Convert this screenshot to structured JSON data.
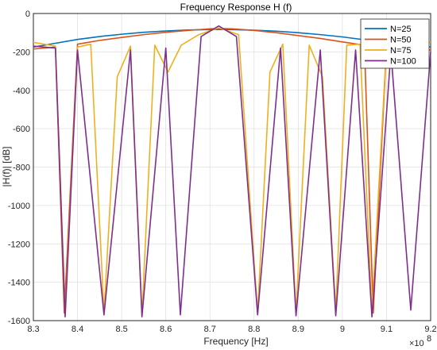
{
  "chart_data": {
    "type": "line",
    "title": "Frequency Response H (f)",
    "xlabel": "Frequency [Hz]",
    "ylabel": "|H(f)| [dB]",
    "x_exponent_label": "×10",
    "x_exponent_power": "8",
    "xlim": [
      8.3,
      9.2
    ],
    "ylim": [
      -1600,
      0
    ],
    "x_ticks": [
      "8.3",
      "8.4",
      "8.5",
      "8.6",
      "8.7",
      "8.8",
      "8.9",
      "9",
      "9.1",
      "9.2"
    ],
    "y_ticks": [
      "0",
      "-200",
      "-400",
      "-600",
      "-800",
      "-1000",
      "-1200",
      "-1400",
      "-1600"
    ],
    "grid": true,
    "legend_position": "top-right",
    "series": [
      {
        "name": "N=25",
        "color": "#0072BD",
        "x": [
          8.3,
          8.35,
          8.4,
          8.45,
          8.5,
          8.55,
          8.6,
          8.65,
          8.7,
          8.72,
          8.75,
          8.8,
          8.85,
          8.9,
          8.95,
          9.0,
          9.05,
          9.1,
          9.15,
          9.2
        ],
        "y": [
          -175,
          -155,
          -135,
          -120,
          -108,
          -98,
          -91,
          -86,
          -84,
          -83,
          -84,
          -87,
          -92,
          -100,
          -110,
          -122,
          -137,
          -152,
          -168,
          -175
        ],
        "nulls": []
      },
      {
        "name": "N=50",
        "color": "#D95319",
        "x": [
          8.3,
          8.35,
          8.37,
          8.4,
          8.45,
          8.5,
          8.55,
          8.6,
          8.65,
          8.7,
          8.72,
          8.75,
          8.8,
          8.85,
          8.9,
          8.95,
          9.0,
          9.05,
          9.07,
          9.1,
          9.15,
          9.2
        ],
        "y": [
          -185,
          -175,
          -1560,
          -160,
          -140,
          -125,
          -110,
          -98,
          -88,
          -80,
          -78,
          -80,
          -88,
          -100,
          -115,
          -130,
          -148,
          -165,
          -1560,
          -175,
          -185,
          -190
        ],
        "nulls": [
          8.372,
          9.067
        ]
      },
      {
        "name": "N=75",
        "color": "#EDB120",
        "x": [
          8.3,
          8.35,
          8.372,
          8.4,
          8.43,
          8.46,
          8.49,
          8.52,
          8.546,
          8.575,
          8.605,
          8.635,
          8.675,
          8.72,
          8.765,
          8.808,
          8.836,
          8.865,
          8.895,
          8.925,
          8.955,
          8.985,
          9.01,
          9.04,
          9.067,
          9.1,
          9.15,
          9.2
        ],
        "y": [
          -150,
          -170,
          -1560,
          -175,
          -160,
          -1560,
          -330,
          -170,
          -1570,
          -165,
          -305,
          -165,
          -110,
          -75,
          -110,
          -1560,
          -305,
          -160,
          -1560,
          -165,
          -330,
          -1550,
          -165,
          -160,
          -1560,
          -170,
          -160,
          -150
        ],
        "nulls": [
          8.372,
          8.46,
          8.546,
          8.808,
          8.895,
          8.985,
          9.067
        ]
      },
      {
        "name": "N=100",
        "color": "#7E2F8E",
        "x": [
          8.3,
          8.35,
          8.372,
          8.4,
          8.46,
          8.52,
          8.546,
          8.6,
          8.633,
          8.68,
          8.72,
          8.76,
          8.808,
          8.86,
          8.895,
          8.95,
          8.985,
          9.03,
          9.067,
          9.11,
          9.155,
          9.2
        ],
        "y": [
          -170,
          -180,
          -1580,
          -190,
          -1570,
          -190,
          -1580,
          -180,
          -1570,
          -120,
          -65,
          -120,
          -1570,
          -180,
          -1575,
          -190,
          -1575,
          -190,
          -1580,
          -200,
          -1545,
          -200
        ],
        "nulls": [
          8.372,
          8.46,
          8.546,
          8.633,
          8.808,
          8.895,
          8.985,
          9.067,
          9.155
        ]
      }
    ]
  }
}
